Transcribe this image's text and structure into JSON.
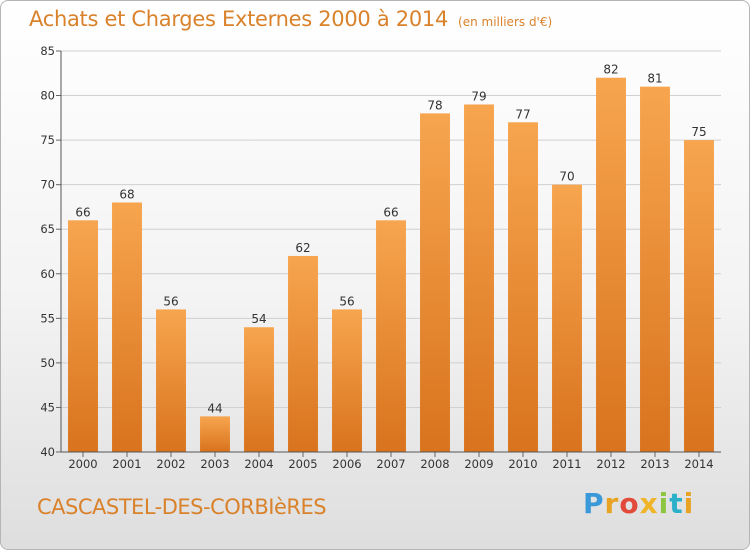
{
  "header": {
    "title": "Achats et Charges Externes 2000 à 2014",
    "unit": "(en milliers d'€)"
  },
  "footer": {
    "city": "CASCASTEL-DES-CORBIèRES",
    "logo_letters": [
      "P",
      "r",
      "o",
      "x",
      "i",
      "t",
      "i"
    ],
    "logo_colors": [
      "#3a9ad9",
      "#e8a323",
      "#e24a3b",
      "#f0b428",
      "#8cc63f",
      "#2bb0c9",
      "#e8a323"
    ]
  },
  "chart_data": {
    "type": "bar",
    "title": "Achats et Charges Externes 2000 à 2014",
    "xlabel": "",
    "ylabel": "",
    "categories": [
      "2000",
      "2001",
      "2002",
      "2003",
      "2004",
      "2005",
      "2006",
      "2007",
      "2008",
      "2009",
      "2010",
      "2011",
      "2012",
      "2013",
      "2014"
    ],
    "values": [
      66,
      68,
      56,
      44,
      54,
      62,
      56,
      66,
      78,
      79,
      77,
      70,
      82,
      81,
      75
    ],
    "ylim": [
      40,
      85
    ],
    "yticks": [
      40,
      45,
      50,
      55,
      60,
      65,
      70,
      75,
      80,
      85
    ],
    "grid": true,
    "bar_color_top": "#f7a54f",
    "bar_color_bottom": "#d9731d"
  }
}
